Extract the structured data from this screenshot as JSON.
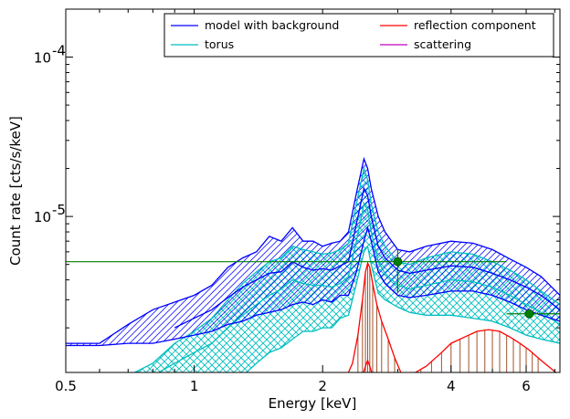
{
  "chart_data": {
    "type": "line",
    "xlabel": "Energy [keV]",
    "ylabel": "Count rate [cts/s/keV]",
    "xscale": "log",
    "yscale": "log",
    "xlim": [
      0.5,
      7.2
    ],
    "ylim": [
      1.05e-06,
      0.0002
    ],
    "grid": false,
    "legend": {
      "placement": "top-right",
      "columns": 2,
      "entries": [
        {
          "name": "model with background",
          "color": "#0000ff"
        },
        {
          "name": "reflection component",
          "color": "#ff0000"
        },
        {
          "name": "torus",
          "color": "#00bfbf"
        },
        {
          "name": "scattering",
          "color": "#bf00bf"
        }
      ]
    },
    "xticks": [
      {
        "value": 0.5,
        "label": "0.5"
      },
      {
        "value": 1,
        "label": "1"
      },
      {
        "value": 2,
        "label": "2"
      },
      {
        "value": 4,
        "label": "4"
      },
      {
        "value": 6,
        "label": "6"
      }
    ],
    "yticks": [
      {
        "value": 1e-05,
        "base": "10",
        "exp": "-5"
      },
      {
        "value": 0.0001,
        "base": "10",
        "exp": "-4"
      }
    ],
    "series": [
      {
        "name": "model with background",
        "color": "#0000ff",
        "band_lower": {
          "x": [
            0.5,
            0.6,
            0.7,
            0.8,
            0.9,
            1.0,
            1.1,
            1.2,
            1.3,
            1.4,
            1.5,
            1.6,
            1.7,
            1.8,
            1.9,
            2.0,
            2.1,
            2.2,
            2.3,
            2.4,
            2.5,
            2.55,
            2.6,
            2.7,
            2.8,
            3.0,
            3.2,
            3.5,
            4.0,
            4.5,
            5.0,
            5.5,
            6.0,
            6.5,
            7.2
          ],
          "y": [
            1.55e-06,
            1.55e-06,
            1.6e-06,
            1.6e-06,
            1.7e-06,
            1.8e-06,
            1.9e-06,
            2.1e-06,
            2.2e-06,
            2.4e-06,
            2.5e-06,
            2.6e-06,
            2.8e-06,
            2.9e-06,
            2.8e-06,
            3e-06,
            2.9e-06,
            3.2e-06,
            3.2e-06,
            4.5e-06,
            7e-06,
            8.5e-06,
            7e-06,
            4.5e-06,
            3.8e-06,
            3.2e-06,
            3.1e-06,
            3.2e-06,
            3.4e-06,
            3.4e-06,
            3.2e-06,
            2.9e-06,
            2.6e-06,
            2.4e-06,
            2.2e-06
          ]
        },
        "band_upper": {
          "x": [
            0.5,
            0.6,
            0.7,
            0.8,
            0.9,
            1.0,
            1.1,
            1.2,
            1.3,
            1.4,
            1.5,
            1.6,
            1.7,
            1.8,
            1.9,
            2.0,
            2.1,
            2.2,
            2.3,
            2.4,
            2.5,
            2.55,
            2.6,
            2.7,
            2.8,
            3.0,
            3.2,
            3.5,
            4.0,
            4.5,
            5.0,
            5.5,
            6.0,
            6.5,
            7.2
          ],
          "y": [
            1.6e-06,
            1.6e-06,
            2.1e-06,
            2.6e-06,
            2.9e-06,
            3.2e-06,
            3.7e-06,
            4.8e-06,
            5.5e-06,
            6e-06,
            7.5e-06,
            7e-06,
            8.5e-06,
            7e-06,
            7e-06,
            6.5e-06,
            6.8e-06,
            7e-06,
            8e-06,
            1.4e-05,
            2.3e-05,
            2e-05,
            1.5e-05,
            1e-05,
            8e-06,
            6.2e-06,
            6e-06,
            6.5e-06,
            7e-06,
            6.8e-06,
            6.2e-06,
            5.4e-06,
            4.8e-06,
            4.2e-06,
            3.2e-06
          ]
        },
        "mid": {
          "x": [
            0.9,
            1.0,
            1.1,
            1.2,
            1.3,
            1.4,
            1.5,
            1.6,
            1.7,
            1.8,
            1.9,
            2.0,
            2.1,
            2.2,
            2.3,
            2.4,
            2.5,
            2.55,
            2.6,
            2.7,
            2.8,
            3.0,
            3.2,
            3.5,
            4.0,
            4.5,
            5.0,
            5.5,
            6.0,
            6.5,
            7.2
          ],
          "y": [
            2e-06,
            2.3e-06,
            2.6e-06,
            3.1e-06,
            3.6e-06,
            4e-06,
            4.4e-06,
            4.5e-06,
            5.2e-06,
            4.8e-06,
            4.6e-06,
            4.7e-06,
            4.6e-06,
            4.9e-06,
            5.2e-06,
            9e-06,
            1.5e-05,
            1.35e-05,
            1e-05,
            6.5e-06,
            5.5e-06,
            4.6e-06,
            4.4e-06,
            4.6e-06,
            4.9e-06,
            4.8e-06,
            4.4e-06,
            4e-06,
            3.6e-06,
            3.2e-06,
            2.6e-06
          ]
        }
      },
      {
        "name": "torus",
        "color": "#00bfbf",
        "band_lower": {
          "x": [
            0.5,
            0.6,
            0.7,
            0.8,
            0.9,
            1.0,
            1.1,
            1.2,
            1.3,
            1.4,
            1.5,
            1.6,
            1.7,
            1.8,
            1.9,
            2.0,
            2.1,
            2.2,
            2.3,
            2.4,
            2.5,
            2.55,
            2.6,
            2.7,
            2.8,
            3.0,
            3.2,
            3.5,
            4.0,
            4.5,
            5.0,
            5.5,
            6.0,
            6.5,
            7.2
          ],
          "y": [
            1e-06,
            1e-06,
            1e-06,
            1e-06,
            1e-06,
            1e-06,
            1e-06,
            1e-06,
            1e-06,
            1.2e-06,
            1.4e-06,
            1.5e-06,
            1.7e-06,
            1.9e-06,
            1.9e-06,
            2e-06,
            2e-06,
            2.3e-06,
            2.4e-06,
            3.8e-06,
            6e-06,
            6.5e-06,
            5e-06,
            3.3e-06,
            3e-06,
            2.7e-06,
            2.5e-06,
            2.4e-06,
            2.4e-06,
            2.3e-06,
            2.2e-06,
            2e-06,
            1.8e-06,
            1.7e-06,
            1.6e-06
          ]
        },
        "band_upper": {
          "x": [
            0.7,
            0.8,
            0.9,
            1.0,
            1.1,
            1.2,
            1.3,
            1.4,
            1.5,
            1.6,
            1.7,
            1.8,
            1.9,
            2.0,
            2.1,
            2.2,
            2.3,
            2.4,
            2.5,
            2.55,
            2.6,
            2.7,
            2.8,
            3.0,
            3.2,
            3.5,
            4.0,
            4.5,
            5.0,
            5.5,
            6.0,
            6.5,
            7.2
          ],
          "y": [
            1e-06,
            1.2e-06,
            1.6e-06,
            1.9e-06,
            2.3e-06,
            3e-06,
            3.8e-06,
            4.5e-06,
            5.2e-06,
            5.5e-06,
            6.5e-06,
            6.2e-06,
            6e-06,
            5.8e-06,
            5.9e-06,
            6.2e-06,
            6.8e-06,
            1.2e-05,
            2e-05,
            1.7e-05,
            1.2e-05,
            8e-06,
            6.5e-06,
            5.2e-06,
            5e-06,
            5.5e-06,
            6e-06,
            5.8e-06,
            5.2e-06,
            4.6e-06,
            4e-06,
            3.4e-06,
            2.8e-06
          ]
        },
        "mid": {
          "x": [
            0.8,
            0.9,
            1.0,
            1.1,
            1.2,
            1.3,
            1.4,
            1.5,
            1.6,
            1.7,
            1.8,
            1.9,
            2.0,
            2.1,
            2.2,
            2.3,
            2.4,
            2.5,
            2.55,
            2.6,
            2.7,
            2.8,
            3.0,
            3.2,
            3.5,
            4.0,
            4.5,
            5.0,
            5.5,
            6.0,
            6.5,
            7.2
          ],
          "y": [
            1e-06,
            1.2e-06,
            1.4e-06,
            1.6e-06,
            2e-06,
            2.4e-06,
            2.8e-06,
            3.2e-06,
            3.5e-06,
            4e-06,
            3.8e-06,
            3.7e-06,
            3.7e-06,
            3.6e-06,
            3.8e-06,
            4.2e-06,
            7e-06,
            1.2e-05,
            1.1e-05,
            8e-06,
            5.2e-06,
            4.4e-06,
            3.7e-06,
            3.5e-06,
            3.7e-06,
            4e-06,
            3.9e-06,
            3.6e-06,
            3.2e-06,
            2.8e-06,
            2.5e-06,
            2.1e-06
          ]
        }
      },
      {
        "name": "reflection component",
        "color": "#ff0000",
        "line": {
          "x": [
            2.28,
            2.35,
            2.42,
            2.48,
            2.52,
            2.55,
            2.58,
            2.62,
            2.68,
            2.75,
            2.85,
            2.95,
            3.05,
            3.15,
            3.3,
            3.5,
            3.8,
            4.0,
            4.3,
            4.6,
            4.9,
            5.2,
            5.5,
            5.8,
            6.1,
            6.5,
            7.2
          ],
          "y": [
            1e-06,
            1.2e-06,
            1.8e-06,
            3e-06,
            4.5e-06,
            5.1e-06,
            4.8e-06,
            3.8e-06,
            2.8e-06,
            2.2e-06,
            1.7e-06,
            1.3e-06,
            1.05e-06,
            1e-06,
            1.05e-06,
            1.15e-06,
            1.4e-06,
            1.6e-06,
            1.75e-06,
            1.9e-06,
            1.95e-06,
            1.9e-06,
            1.75e-06,
            1.6e-06,
            1.45e-06,
            1.25e-06,
            1e-06
          ]
        },
        "stems": [
          2.42,
          2.48,
          2.52,
          2.55,
          2.58,
          2.62,
          2.68,
          2.75,
          2.85,
          2.95,
          3.4,
          3.6,
          3.8,
          4.0,
          4.2,
          4.4,
          4.6,
          4.8,
          5.0,
          5.2,
          5.4,
          5.6,
          5.8,
          6.0,
          6.2,
          6.4
        ],
        "low_bump": {
          "x": [
            2.48,
            2.52,
            2.55,
            2.58,
            2.62
          ],
          "y": [
            1e-06,
            1.15e-06,
            1.25e-06,
            1.15e-06,
            1e-06
          ]
        }
      },
      {
        "name": "scattering",
        "color": "#bf00bf"
      }
    ],
    "data_points": [
      {
        "x": 3.0,
        "y": 5.2e-06,
        "xerr": [
          0.5,
          5.4
        ],
        "yerr": [
          3.3e-06,
          6.2e-06
        ],
        "color": "#008000"
      },
      {
        "x": 6.1,
        "y": 2.45e-06,
        "xerr": [
          5.4,
          7.2
        ],
        "yerr": [
          2.45e-06,
          2.45e-06
        ],
        "color": "#008000"
      }
    ]
  }
}
